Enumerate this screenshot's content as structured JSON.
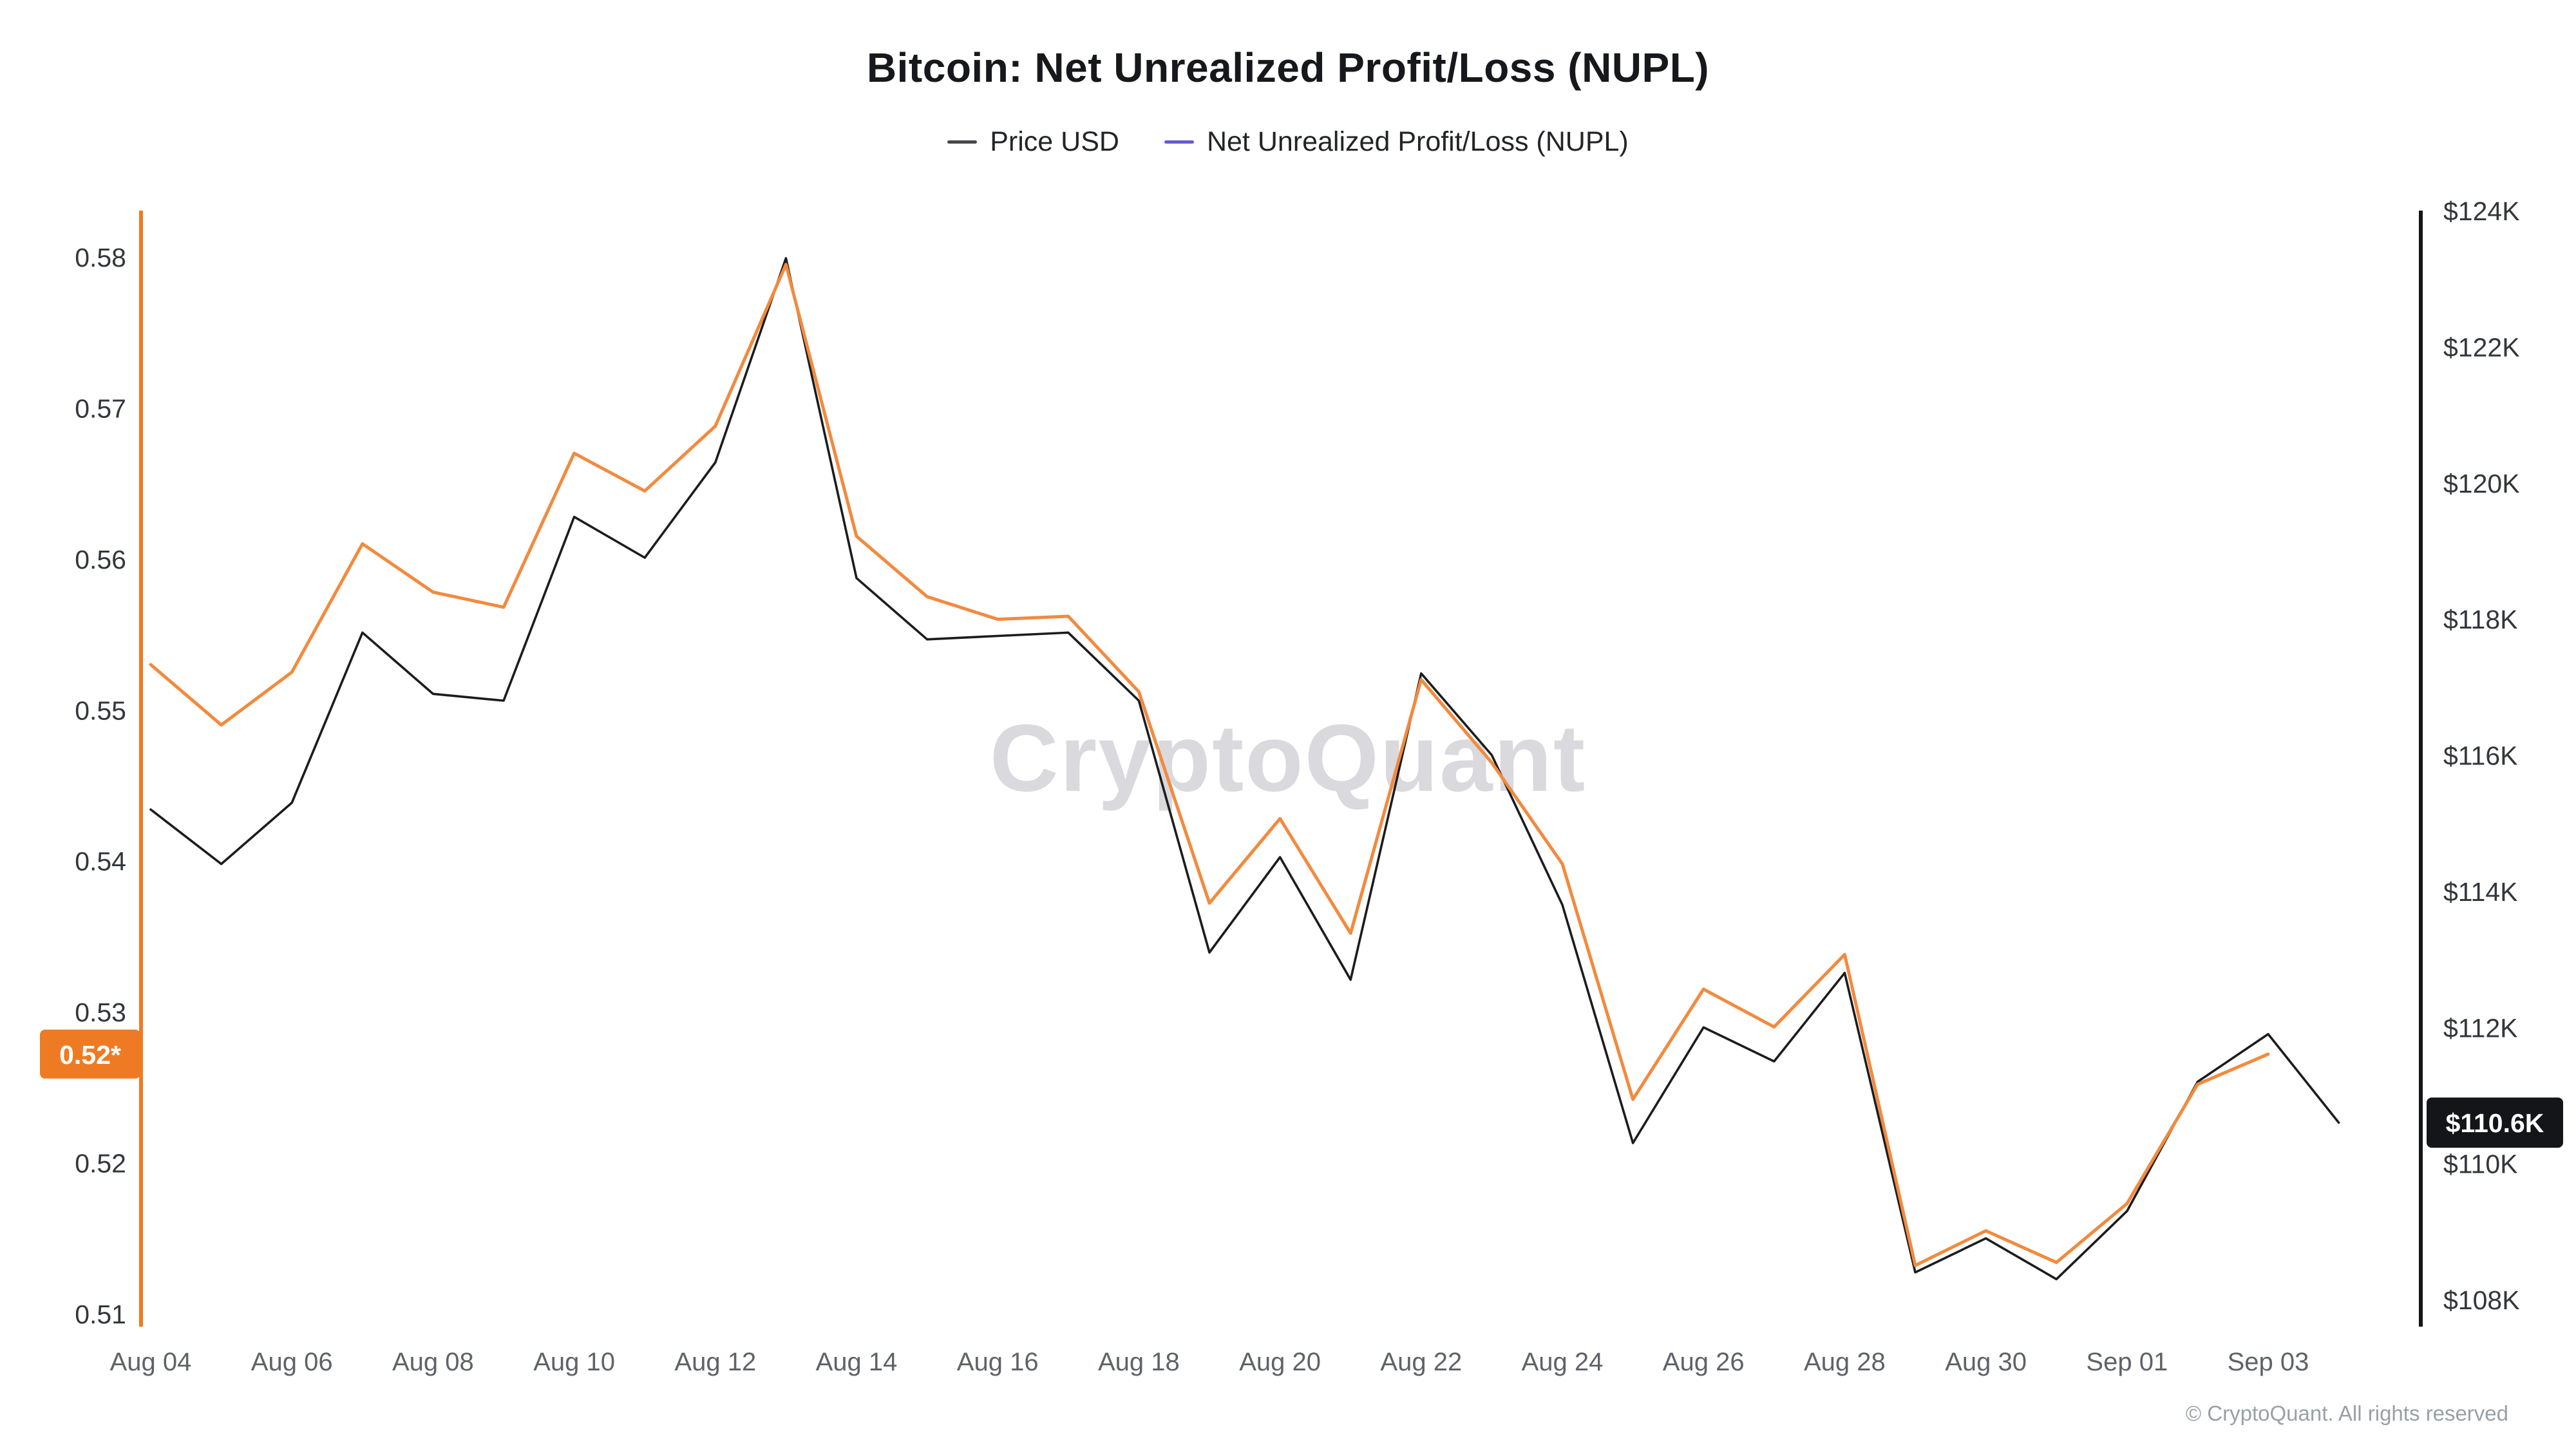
{
  "header": {
    "title": "Bitcoin: Net Unrealized Profit/Loss (NUPL)"
  },
  "legend": {
    "items": [
      {
        "label": "Price USD",
        "color": "#46474c"
      },
      {
        "label": "Net Unrealized Profit/Loss (NUPL)",
        "color": "#6459d8"
      }
    ]
  },
  "watermark": "CryptoQuant",
  "footer": {
    "copyright": "© CryptoQuant. All rights reserved"
  },
  "badges": {
    "nupl": {
      "label": "0.52*",
      "color": "#ee7b23",
      "text_color": "#ffffff"
    },
    "price": {
      "label": "$110.6K",
      "color": "#141518",
      "text_color": "#ffffff"
    }
  },
  "chart_data": {
    "type": "line",
    "title": "Bitcoin: Net Unrealized Profit/Loss (NUPL)",
    "legend_position": "top",
    "grid": "off",
    "x": [
      "Aug 04",
      "Aug 05",
      "Aug 06",
      "Aug 07",
      "Aug 08",
      "Aug 09",
      "Aug 10",
      "Aug 11",
      "Aug 12",
      "Aug 13",
      "Aug 14",
      "Aug 15",
      "Aug 16",
      "Aug 17",
      "Aug 18",
      "Aug 19",
      "Aug 20",
      "Aug 21",
      "Aug 22",
      "Aug 23",
      "Aug 24",
      "Aug 25",
      "Aug 26",
      "Aug 27",
      "Aug 28",
      "Aug 29",
      "Aug 30",
      "Aug 31",
      "Sep 01",
      "Sep 02",
      "Sep 03",
      "Sep 04"
    ],
    "x_ticks": [
      "Aug 04",
      "Aug 06",
      "Aug 08",
      "Aug 10",
      "Aug 12",
      "Aug 14",
      "Aug 16",
      "Aug 18",
      "Aug 20",
      "Aug 22",
      "Aug 24",
      "Aug 26",
      "Aug 28",
      "Aug 30",
      "Sep 01",
      "Sep 03"
    ],
    "series": [
      {
        "name": "Price USD",
        "axis": "right",
        "unit": "K USD",
        "color": "#1b1c1e",
        "values": [
          115.2,
          114.4,
          115.3,
          117.8,
          116.9,
          116.8,
          119.5,
          118.9,
          120.3,
          123.3,
          118.6,
          117.7,
          117.75,
          117.8,
          116.8,
          113.1,
          114.5,
          112.7,
          117.2,
          116.0,
          113.8,
          110.3,
          112.0,
          111.5,
          112.8,
          108.4,
          108.9,
          108.3,
          109.3,
          111.2,
          111.9,
          110.6
        ]
      },
      {
        "name": "Net Unrealized Profit/Loss (NUPL)",
        "axis": "left",
        "unit": "ratio",
        "color": "#f28a3e",
        "values": [
          0.553,
          0.549,
          0.5525,
          0.561,
          0.5578,
          0.5568,
          0.567,
          0.5645,
          0.5688,
          0.5795,
          0.5615,
          0.5575,
          0.556,
          0.5562,
          0.5512,
          0.5372,
          0.5428,
          0.5352,
          0.552,
          0.5465,
          0.5398,
          0.5242,
          0.5315,
          0.529,
          0.5338,
          0.5132,
          0.5155,
          0.5134,
          0.5173,
          0.5252,
          0.5272,
          null
        ]
      }
    ],
    "left_axis": {
      "min": 0.51,
      "max": 0.58,
      "ticks": [
        0.58,
        0.57,
        0.56,
        0.55,
        0.54,
        0.53,
        0.52,
        0.51
      ],
      "color": "#ee7b23"
    },
    "right_axis": {
      "min": 108,
      "max": 124,
      "ticks": [
        "$124K",
        "$122K",
        "$120K",
        "$118K",
        "$116K",
        "$114K",
        "$112K",
        "$110K",
        "$108K"
      ],
      "tick_values": [
        124,
        122,
        120,
        118,
        116,
        114,
        112,
        110,
        108
      ],
      "color": "#141518"
    }
  }
}
